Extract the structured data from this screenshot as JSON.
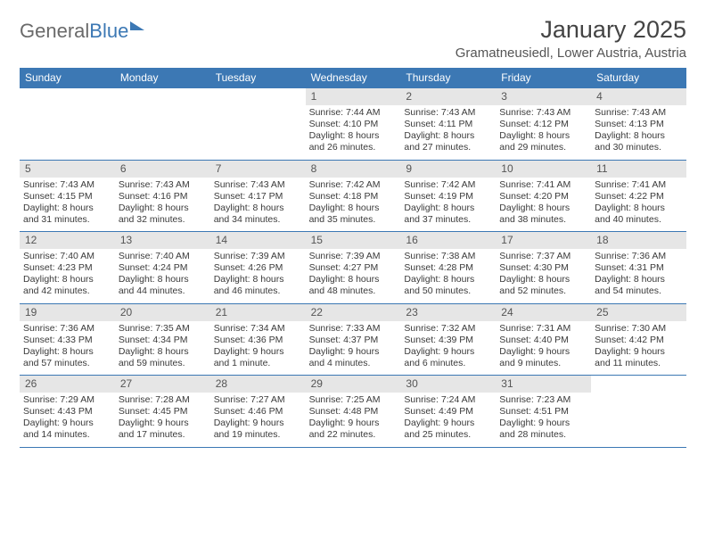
{
  "branding": {
    "word1": "General",
    "word2": "Blue"
  },
  "header": {
    "month_title": "January 2025",
    "location": "Gramatneusiedl, Lower Austria, Austria"
  },
  "style": {
    "header_bg": "#3c78b4",
    "header_text": "#ffffff",
    "daynum_bg": "#e6e6e6",
    "rule_color": "#3c78b4",
    "body_text": "#3a3a3a",
    "title_color": "#444444",
    "page_bg": "#ffffff",
    "font_family": "Arial, Helvetica, sans-serif",
    "dow_fontsize_pt": 9,
    "body_fontsize_pt": 8,
    "title_fontsize_pt": 20
  },
  "days_of_week": [
    "Sunday",
    "Monday",
    "Tuesday",
    "Wednesday",
    "Thursday",
    "Friday",
    "Saturday"
  ],
  "weeks": [
    [
      {
        "n": "",
        "sr": "",
        "ss": "",
        "dl": ""
      },
      {
        "n": "",
        "sr": "",
        "ss": "",
        "dl": ""
      },
      {
        "n": "",
        "sr": "",
        "ss": "",
        "dl": ""
      },
      {
        "n": "1",
        "sr": "Sunrise: 7:44 AM",
        "ss": "Sunset: 4:10 PM",
        "dl": "Daylight: 8 hours and 26 minutes."
      },
      {
        "n": "2",
        "sr": "Sunrise: 7:43 AM",
        "ss": "Sunset: 4:11 PM",
        "dl": "Daylight: 8 hours and 27 minutes."
      },
      {
        "n": "3",
        "sr": "Sunrise: 7:43 AM",
        "ss": "Sunset: 4:12 PM",
        "dl": "Daylight: 8 hours and 29 minutes."
      },
      {
        "n": "4",
        "sr": "Sunrise: 7:43 AM",
        "ss": "Sunset: 4:13 PM",
        "dl": "Daylight: 8 hours and 30 minutes."
      }
    ],
    [
      {
        "n": "5",
        "sr": "Sunrise: 7:43 AM",
        "ss": "Sunset: 4:15 PM",
        "dl": "Daylight: 8 hours and 31 minutes."
      },
      {
        "n": "6",
        "sr": "Sunrise: 7:43 AM",
        "ss": "Sunset: 4:16 PM",
        "dl": "Daylight: 8 hours and 32 minutes."
      },
      {
        "n": "7",
        "sr": "Sunrise: 7:43 AM",
        "ss": "Sunset: 4:17 PM",
        "dl": "Daylight: 8 hours and 34 minutes."
      },
      {
        "n": "8",
        "sr": "Sunrise: 7:42 AM",
        "ss": "Sunset: 4:18 PM",
        "dl": "Daylight: 8 hours and 35 minutes."
      },
      {
        "n": "9",
        "sr": "Sunrise: 7:42 AM",
        "ss": "Sunset: 4:19 PM",
        "dl": "Daylight: 8 hours and 37 minutes."
      },
      {
        "n": "10",
        "sr": "Sunrise: 7:41 AM",
        "ss": "Sunset: 4:20 PM",
        "dl": "Daylight: 8 hours and 38 minutes."
      },
      {
        "n": "11",
        "sr": "Sunrise: 7:41 AM",
        "ss": "Sunset: 4:22 PM",
        "dl": "Daylight: 8 hours and 40 minutes."
      }
    ],
    [
      {
        "n": "12",
        "sr": "Sunrise: 7:40 AM",
        "ss": "Sunset: 4:23 PM",
        "dl": "Daylight: 8 hours and 42 minutes."
      },
      {
        "n": "13",
        "sr": "Sunrise: 7:40 AM",
        "ss": "Sunset: 4:24 PM",
        "dl": "Daylight: 8 hours and 44 minutes."
      },
      {
        "n": "14",
        "sr": "Sunrise: 7:39 AM",
        "ss": "Sunset: 4:26 PM",
        "dl": "Daylight: 8 hours and 46 minutes."
      },
      {
        "n": "15",
        "sr": "Sunrise: 7:39 AM",
        "ss": "Sunset: 4:27 PM",
        "dl": "Daylight: 8 hours and 48 minutes."
      },
      {
        "n": "16",
        "sr": "Sunrise: 7:38 AM",
        "ss": "Sunset: 4:28 PM",
        "dl": "Daylight: 8 hours and 50 minutes."
      },
      {
        "n": "17",
        "sr": "Sunrise: 7:37 AM",
        "ss": "Sunset: 4:30 PM",
        "dl": "Daylight: 8 hours and 52 minutes."
      },
      {
        "n": "18",
        "sr": "Sunrise: 7:36 AM",
        "ss": "Sunset: 4:31 PM",
        "dl": "Daylight: 8 hours and 54 minutes."
      }
    ],
    [
      {
        "n": "19",
        "sr": "Sunrise: 7:36 AM",
        "ss": "Sunset: 4:33 PM",
        "dl": "Daylight: 8 hours and 57 minutes."
      },
      {
        "n": "20",
        "sr": "Sunrise: 7:35 AM",
        "ss": "Sunset: 4:34 PM",
        "dl": "Daylight: 8 hours and 59 minutes."
      },
      {
        "n": "21",
        "sr": "Sunrise: 7:34 AM",
        "ss": "Sunset: 4:36 PM",
        "dl": "Daylight: 9 hours and 1 minute."
      },
      {
        "n": "22",
        "sr": "Sunrise: 7:33 AM",
        "ss": "Sunset: 4:37 PM",
        "dl": "Daylight: 9 hours and 4 minutes."
      },
      {
        "n": "23",
        "sr": "Sunrise: 7:32 AM",
        "ss": "Sunset: 4:39 PM",
        "dl": "Daylight: 9 hours and 6 minutes."
      },
      {
        "n": "24",
        "sr": "Sunrise: 7:31 AM",
        "ss": "Sunset: 4:40 PM",
        "dl": "Daylight: 9 hours and 9 minutes."
      },
      {
        "n": "25",
        "sr": "Sunrise: 7:30 AM",
        "ss": "Sunset: 4:42 PM",
        "dl": "Daylight: 9 hours and 11 minutes."
      }
    ],
    [
      {
        "n": "26",
        "sr": "Sunrise: 7:29 AM",
        "ss": "Sunset: 4:43 PM",
        "dl": "Daylight: 9 hours and 14 minutes."
      },
      {
        "n": "27",
        "sr": "Sunrise: 7:28 AM",
        "ss": "Sunset: 4:45 PM",
        "dl": "Daylight: 9 hours and 17 minutes."
      },
      {
        "n": "28",
        "sr": "Sunrise: 7:27 AM",
        "ss": "Sunset: 4:46 PM",
        "dl": "Daylight: 9 hours and 19 minutes."
      },
      {
        "n": "29",
        "sr": "Sunrise: 7:25 AM",
        "ss": "Sunset: 4:48 PM",
        "dl": "Daylight: 9 hours and 22 minutes."
      },
      {
        "n": "30",
        "sr": "Sunrise: 7:24 AM",
        "ss": "Sunset: 4:49 PM",
        "dl": "Daylight: 9 hours and 25 minutes."
      },
      {
        "n": "31",
        "sr": "Sunrise: 7:23 AM",
        "ss": "Sunset: 4:51 PM",
        "dl": "Daylight: 9 hours and 28 minutes."
      },
      {
        "n": "",
        "sr": "",
        "ss": "",
        "dl": ""
      }
    ]
  ]
}
